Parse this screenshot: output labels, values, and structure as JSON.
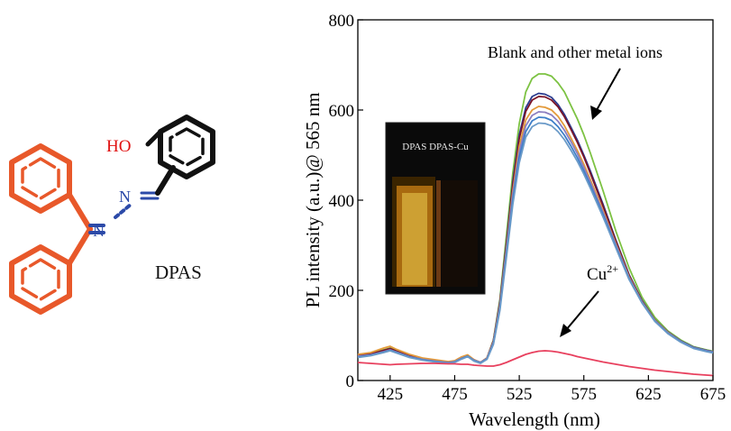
{
  "molecule": {
    "name": "DPAS",
    "atom_labels": {
      "hydroxyl": "HO",
      "imine_n1": "N",
      "imine_n2": "N"
    },
    "colors": {
      "phenyl": "#e8582a",
      "azine": "#2c4aa8",
      "salicyl": "#111111",
      "hydroxyl": "#e01010"
    }
  },
  "chart_data": {
    "type": "line",
    "xlabel": "Wavelength (nm)",
    "ylabel": "PL intensity (a.u.)@ 565 nm",
    "xlim": [
      400,
      675
    ],
    "ylim": [
      0,
      800
    ],
    "xticks": [
      425,
      475,
      525,
      575,
      625,
      675
    ],
    "yticks": [
      0,
      200,
      400,
      600,
      800
    ],
    "grid": false,
    "x": [
      400,
      410,
      420,
      425,
      430,
      440,
      450,
      460,
      470,
      475,
      480,
      485,
      490,
      495,
      500,
      505,
      510,
      515,
      520,
      525,
      530,
      535,
      540,
      545,
      550,
      555,
      560,
      565,
      570,
      575,
      580,
      590,
      600,
      610,
      620,
      630,
      640,
      650,
      660,
      670,
      675
    ],
    "series": [
      {
        "color": "#7cc242",
        "values": [
          55,
          60,
          68,
          72,
          66,
          55,
          48,
          44,
          40,
          42,
          50,
          55,
          45,
          40,
          50,
          90,
          180,
          320,
          460,
          570,
          640,
          670,
          680,
          680,
          675,
          660,
          640,
          610,
          580,
          545,
          505,
          420,
          330,
          250,
          185,
          140,
          110,
          90,
          75,
          68,
          65
        ]
      },
      {
        "color": "#2b3c8f",
        "values": [
          55,
          58,
          66,
          70,
          64,
          54,
          47,
          43,
          40,
          42,
          50,
          55,
          45,
          40,
          50,
          88,
          175,
          305,
          440,
          545,
          605,
          630,
          637,
          635,
          628,
          612,
          590,
          562,
          533,
          500,
          465,
          390,
          310,
          235,
          178,
          135,
          108,
          88,
          74,
          67,
          64
        ]
      },
      {
        "color": "#7a1428",
        "values": [
          56,
          59,
          67,
          71,
          65,
          55,
          48,
          44,
          41,
          43,
          50,
          56,
          46,
          40,
          50,
          88,
          172,
          300,
          432,
          537,
          597,
          622,
          630,
          629,
          622,
          607,
          585,
          557,
          528,
          496,
          460,
          386,
          308,
          233,
          176,
          134,
          107,
          87,
          73,
          66,
          63
        ]
      },
      {
        "color": "#e39a3a",
        "values": [
          58,
          62,
          72,
          76,
          69,
          58,
          50,
          46,
          42,
          44,
          52,
          57,
          46,
          40,
          50,
          86,
          168,
          292,
          420,
          520,
          578,
          600,
          608,
          606,
          600,
          586,
          565,
          538,
          510,
          480,
          446,
          376,
          302,
          230,
          175,
          134,
          107,
          87,
          73,
          66,
          63
        ]
      },
      {
        "color": "#8c7fc0",
        "values": [
          54,
          57,
          64,
          68,
          63,
          53,
          47,
          43,
          40,
          42,
          49,
          54,
          45,
          40,
          49,
          85,
          165,
          288,
          412,
          508,
          565,
          588,
          596,
          595,
          589,
          575,
          555,
          530,
          503,
          473,
          440,
          372,
          300,
          228,
          174,
          133,
          106,
          87,
          73,
          66,
          63
        ]
      },
      {
        "color": "#3f7fc8",
        "values": [
          52,
          56,
          63,
          67,
          62,
          52,
          46,
          42,
          39,
          41,
          48,
          54,
          44,
          39,
          48,
          82,
          160,
          280,
          400,
          495,
          552,
          576,
          584,
          583,
          577,
          563,
          544,
          520,
          494,
          465,
          433,
          367,
          296,
          226,
          173,
          132,
          105,
          86,
          72,
          65,
          62
        ]
      },
      {
        "color": "#6a9ac8",
        "values": [
          51,
          55,
          62,
          66,
          61,
          51,
          45,
          41,
          38,
          40,
          47,
          53,
          43,
          38,
          47,
          80,
          155,
          272,
          390,
          483,
          540,
          563,
          571,
          570,
          565,
          552,
          534,
          511,
          486,
          458,
          427,
          362,
          293,
          224,
          172,
          131,
          104,
          85,
          71,
          64,
          61
        ]
      },
      {
        "color": "#e8405e",
        "values": [
          40,
          38,
          36,
          35,
          36,
          37,
          38,
          38,
          37,
          37,
          36,
          36,
          34,
          33,
          32,
          32,
          35,
          40,
          46,
          52,
          58,
          62,
          65,
          66,
          65,
          63,
          60,
          57,
          53,
          50,
          47,
          41,
          36,
          31,
          27,
          23,
          20,
          17,
          14,
          12,
          11
        ]
      }
    ],
    "annotations": {
      "blank": "Blank and other metal ions",
      "cu_base": "Cu",
      "cu_sup": "2+"
    },
    "inset": {
      "labels": "DPAS DPAS-Cu"
    }
  }
}
